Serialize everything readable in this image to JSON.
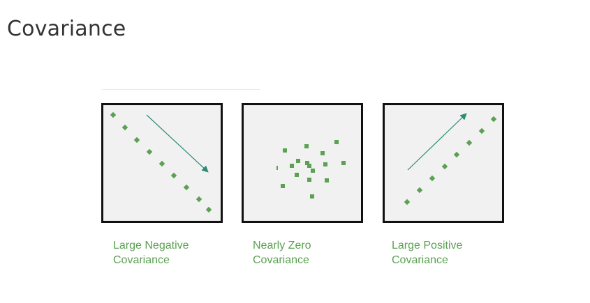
{
  "title": "Covariance",
  "colors": {
    "point": "#5ba152",
    "arrow": "#2a8c74",
    "caption": "#5ba152",
    "panel_fill": "#f1f1f1",
    "panel_border": "#111111"
  },
  "panels": [
    {
      "id": "negative",
      "caption_lines": [
        "Large Negative",
        "Covariance"
      ]
    },
    {
      "id": "zero",
      "caption_lines": [
        "Nearly Zero",
        "Covariance"
      ]
    },
    {
      "id": "positive",
      "caption_lines": [
        "Large Positive",
        "Covariance"
      ]
    }
  ]
}
